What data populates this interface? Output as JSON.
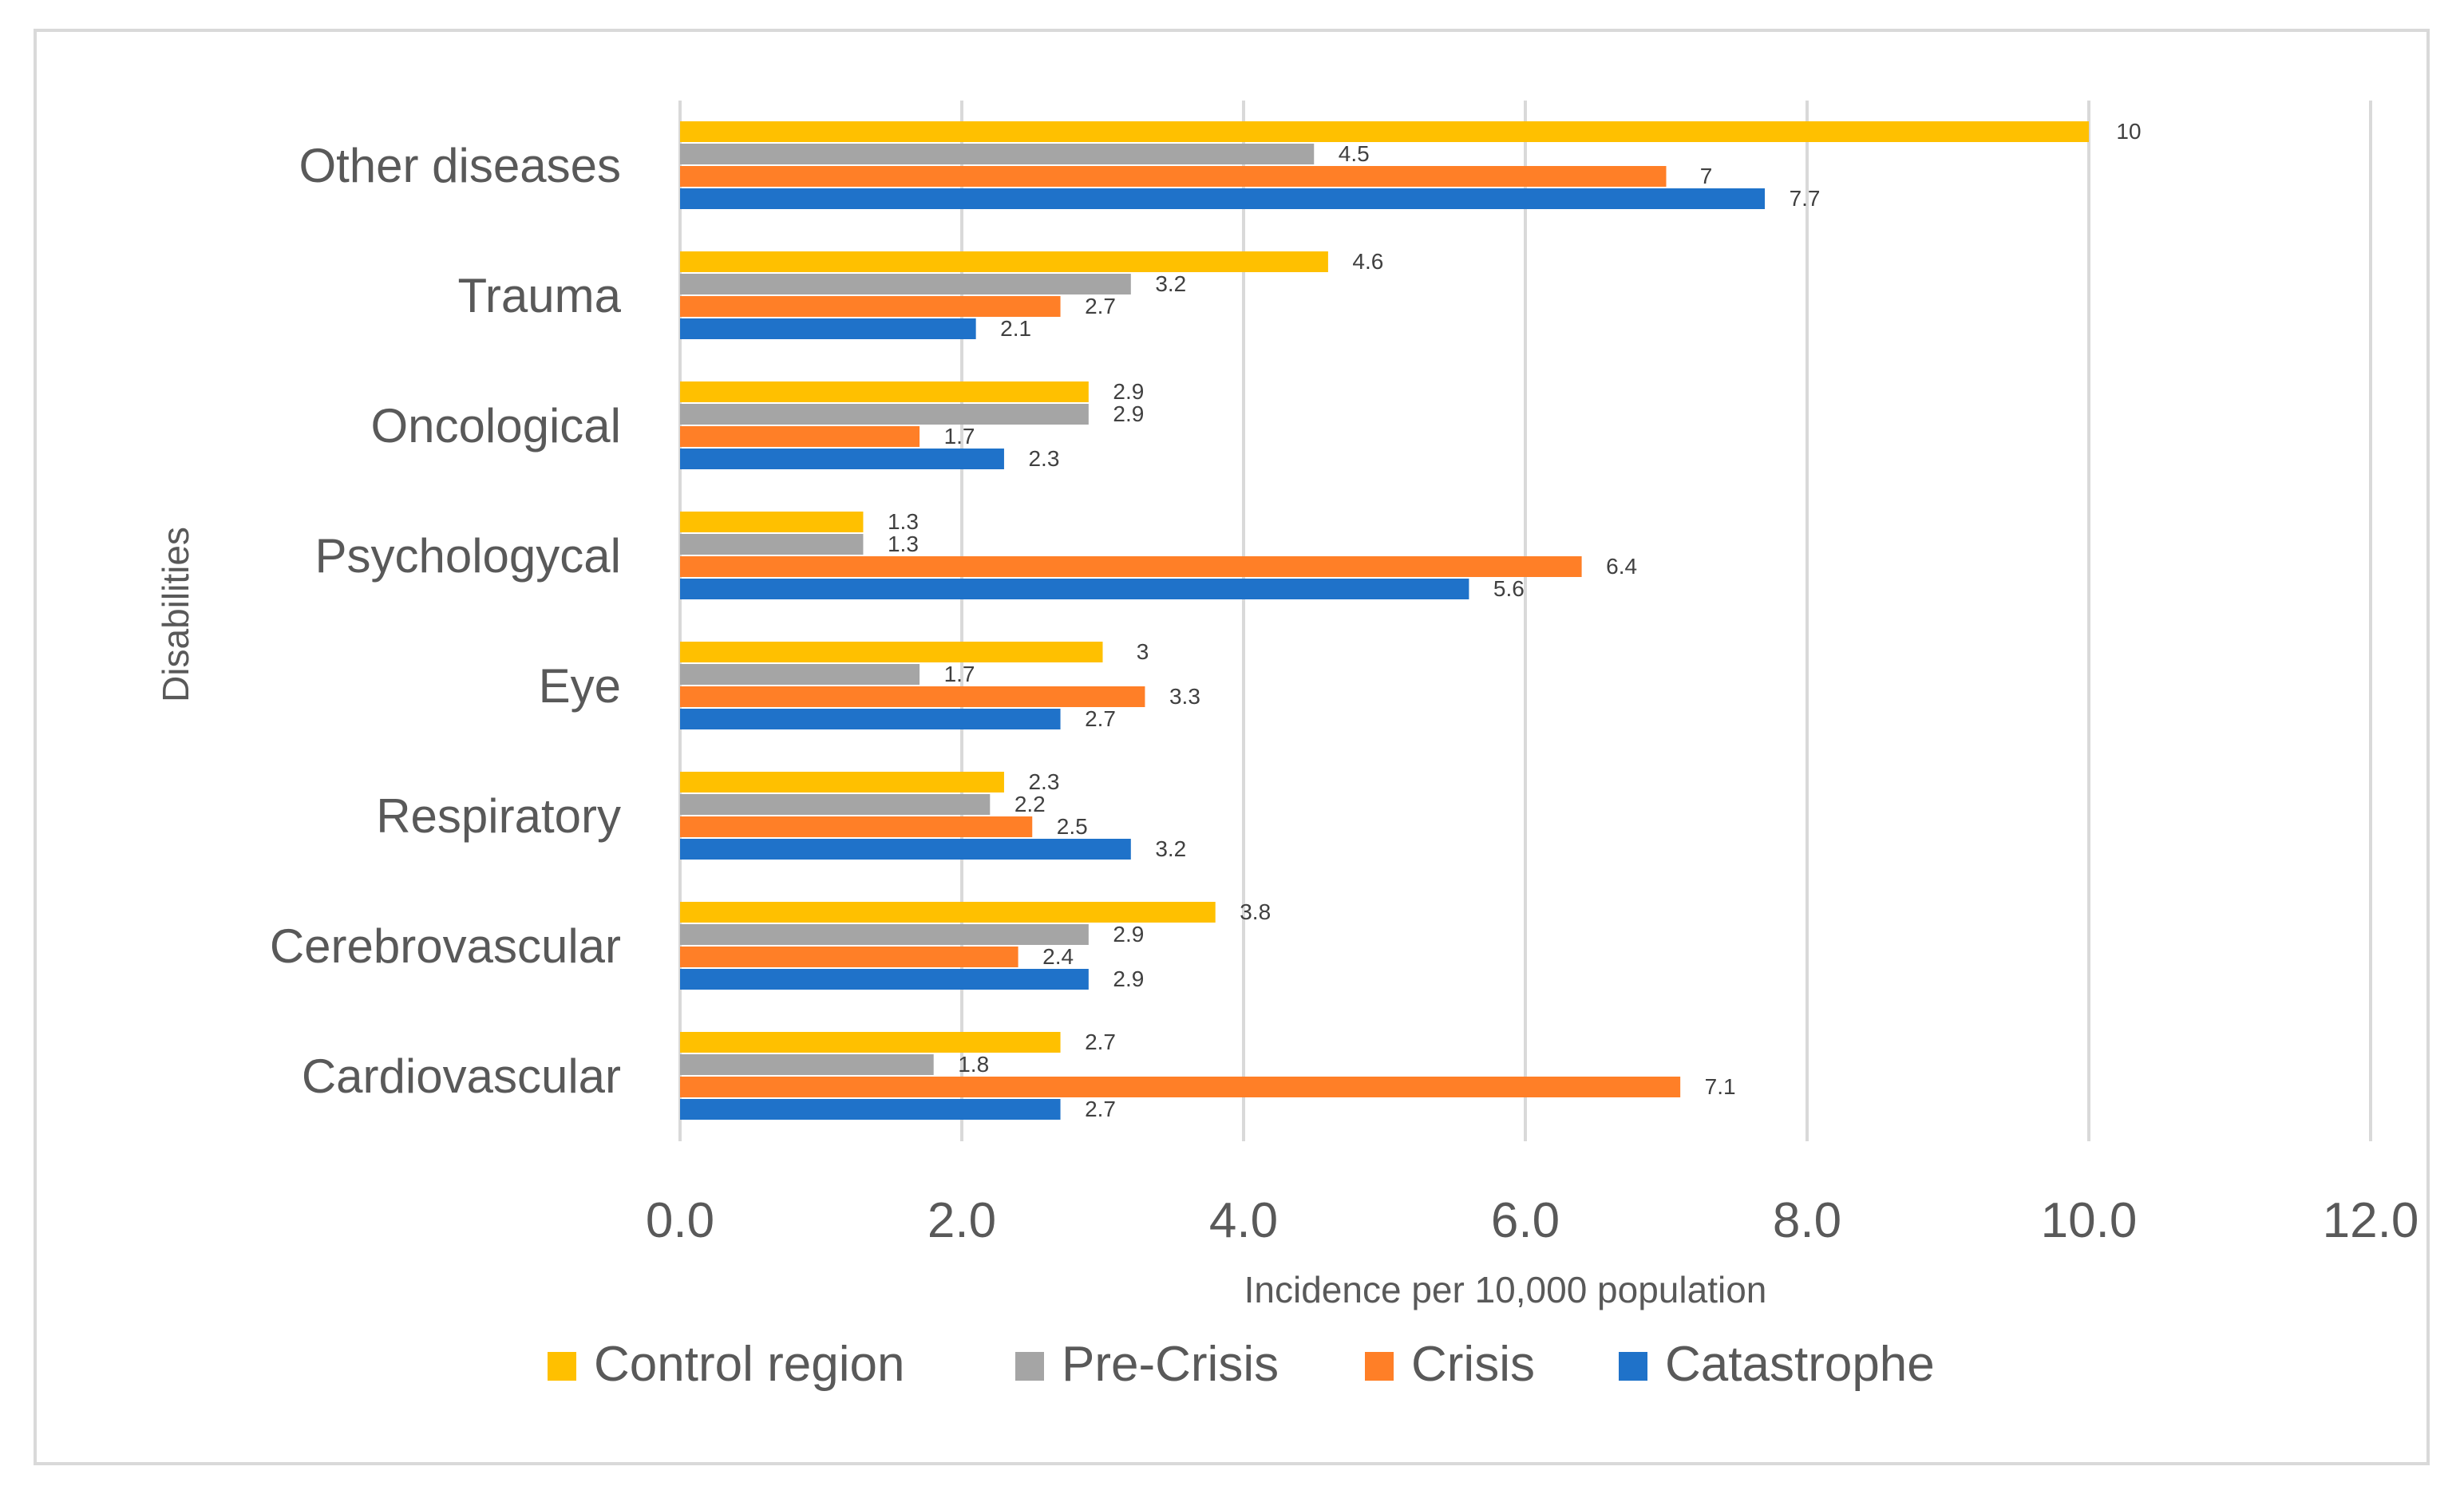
{
  "chart_data": {
    "type": "bar",
    "orientation": "horizontal",
    "title": "",
    "xlabel": "Incidence per 10,000 population",
    "ylabel": "Disabilities",
    "xlim": [
      0,
      12
    ],
    "xticks": [
      "0.0",
      "2.0",
      "4.0",
      "6.0",
      "8.0",
      "10.0",
      "12.0"
    ],
    "grid": "vertical",
    "legend_position": "bottom",
    "categories": [
      "Other diseases",
      "Trauma",
      "Oncological",
      "Psychologycal",
      "Eye",
      "Respiratory",
      "Cerebrovascular",
      "Cardiovascular"
    ],
    "series": [
      {
        "name": "Control region",
        "color": "#FFC000",
        "values": [
          10,
          4.6,
          2.9,
          1.3,
          3,
          2.3,
          3.8,
          2.7
        ],
        "labels": [
          "10",
          "4.6",
          "2.9",
          "1.3",
          "3",
          "2.3",
          "3.8",
          "2.7"
        ]
      },
      {
        "name": "Pre-Crisis",
        "color": "#A5A5A5",
        "values": [
          4.5,
          3.2,
          2.9,
          1.3,
          1.7,
          2.2,
          2.9,
          1.8
        ],
        "labels": [
          "4.5",
          "3.2",
          "2.9",
          "1.3",
          "1.7",
          "2.2",
          "2.9",
          "1.8"
        ]
      },
      {
        "name": "Crisis",
        "color": "#FF7F27",
        "values": [
          7,
          2.7,
          1.7,
          6.4,
          3.3,
          2.5,
          2.4,
          7.1
        ],
        "labels": [
          "7",
          "2.7",
          "1.7",
          "6.4",
          "3.3",
          "2.5",
          "2.4",
          "7.1"
        ]
      },
      {
        "name": "Catastrophe",
        "color": "#1F72C9",
        "values": [
          7.7,
          2.1,
          2.3,
          5.6,
          2.7,
          3.2,
          2.9,
          2.7
        ],
        "labels": [
          "7.7",
          "2.1",
          "2.3",
          "5.6",
          "2.7",
          "3.2",
          "2.9",
          "2.7"
        ]
      }
    ]
  }
}
